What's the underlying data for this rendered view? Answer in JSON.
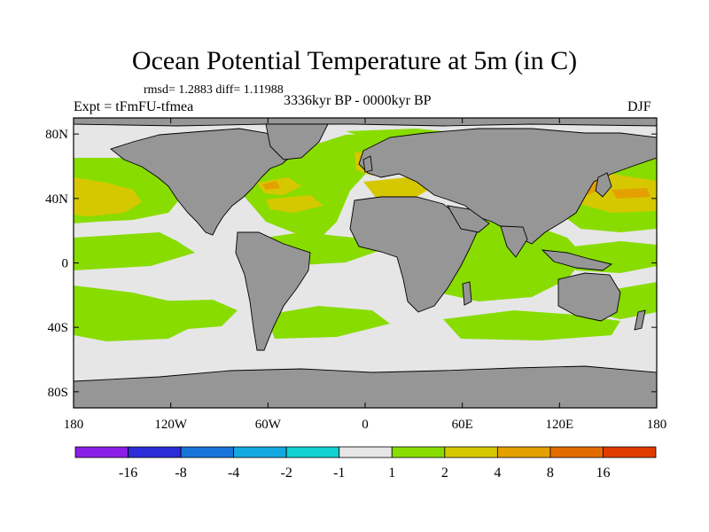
{
  "title": "Ocean Potential Temperature at 5m (in C)",
  "stats": "rmsd= 1.2883  diff= 1.11988",
  "experiment": "Expt = tFmFU-tfmea",
  "period": "3336kyr BP - 0000kyr BP",
  "season": "DJF",
  "y_axis_labels": [
    "80N",
    "40N",
    "0",
    "40S",
    "80S"
  ],
  "y_axis_values": [
    80,
    40,
    0,
    -40,
    -80
  ],
  "x_axis_labels": [
    "180",
    "120W",
    "60W",
    "0",
    "60E",
    "120E",
    "180"
  ],
  "x_axis_values": [
    -180,
    -120,
    -60,
    0,
    60,
    120,
    180
  ],
  "colorbar": {
    "labels": [
      "-16",
      "-8",
      "-4",
      "-2",
      "-1",
      "1",
      "2",
      "4",
      "8",
      "16"
    ],
    "colors": [
      "#8a1ee6",
      "#2c2cd8",
      "#1874d8",
      "#14a8e0",
      "#12d2d2",
      "#e6e6e6",
      "#88dc00",
      "#d6c800",
      "#e4a000",
      "#e26c00",
      "#e03c00"
    ]
  },
  "palette": {
    "land": "#969696",
    "ocean_neutral": "#e6e6e6",
    "warm_1_2": "#88dc00",
    "warm_2_4": "#d6c800",
    "warm_4_8": "#e4a000"
  }
}
